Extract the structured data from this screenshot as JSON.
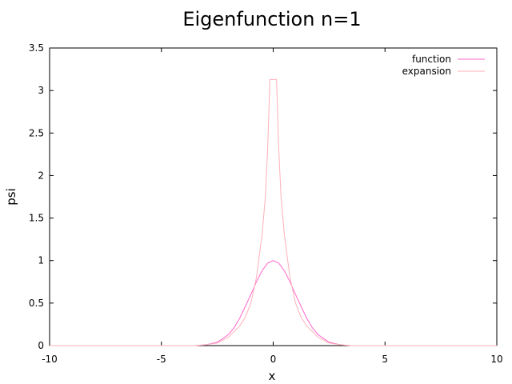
{
  "chart_data": {
    "type": "line",
    "title": "Eigenfunction n=1",
    "xlabel": "x",
    "ylabel": "psi",
    "xlim": [
      -10,
      10
    ],
    "ylim": [
      0,
      3.5
    ],
    "xticks": [
      "-10",
      "-5",
      "0",
      "5",
      "10"
    ],
    "yticks": [
      "0",
      "0.5",
      "1",
      "1.5",
      "2",
      "2.5",
      "3",
      "3.5"
    ],
    "grid": false,
    "legend_position": "top-right",
    "series": [
      {
        "name": "function",
        "color": "#ff66cc",
        "x": [
          -10,
          -4,
          -3.5,
          -3,
          -2.5,
          -2,
          -1.75,
          -1.5,
          -1.25,
          -1,
          -0.75,
          -0.5,
          -0.25,
          0,
          0.25,
          0.5,
          0.75,
          1,
          1.25,
          1.5,
          1.75,
          2,
          2.5,
          3,
          3.5,
          4,
          10
        ],
        "values": [
          0,
          0,
          0,
          0.01,
          0.04,
          0.13,
          0.21,
          0.32,
          0.46,
          0.6,
          0.75,
          0.88,
          0.97,
          1.0,
          0.97,
          0.88,
          0.75,
          0.6,
          0.46,
          0.32,
          0.21,
          0.13,
          0.04,
          0.01,
          0,
          0,
          0
        ]
      },
      {
        "name": "expansion",
        "color": "#ffb0b8",
        "x": [
          -10,
          -4,
          -3.5,
          -3,
          -2.5,
          -2,
          -1.5,
          -1.25,
          -1,
          -0.75,
          -0.5,
          -0.35,
          -0.25,
          -0.2,
          -0.15,
          -0.05,
          0.05,
          0.15,
          0.2,
          0.25,
          0.35,
          0.5,
          0.75,
          1,
          1.25,
          1.5,
          2,
          2.5,
          3,
          3.5,
          4,
          10
        ],
        "values": [
          0,
          0,
          0,
          0.01,
          0.03,
          0.1,
          0.23,
          0.33,
          0.5,
          0.8,
          1.3,
          1.75,
          2.3,
          2.7,
          3.13,
          3.13,
          3.13,
          3.13,
          2.7,
          2.3,
          1.75,
          1.3,
          0.8,
          0.5,
          0.33,
          0.23,
          0.1,
          0.03,
          0.01,
          0,
          0,
          0
        ]
      }
    ]
  }
}
